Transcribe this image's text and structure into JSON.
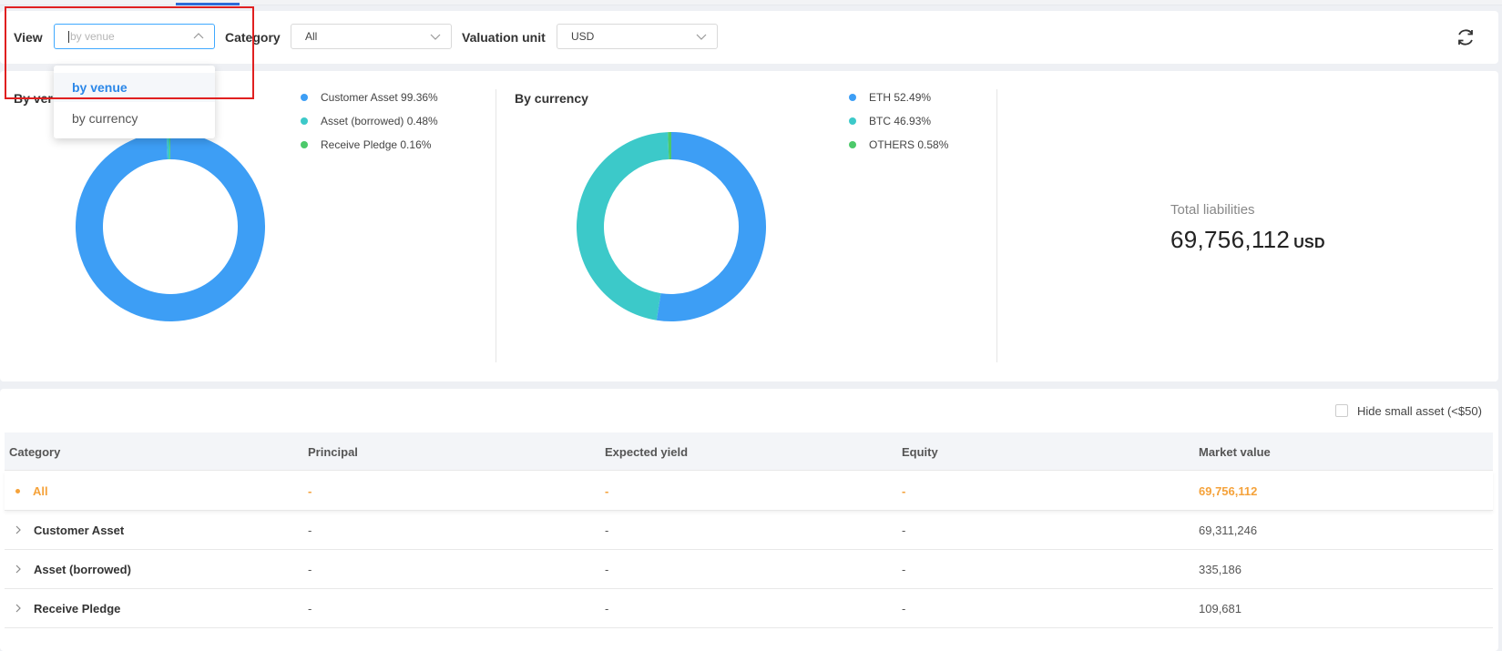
{
  "filters": {
    "view_label": "View",
    "view_placeholder": "by venue",
    "category_label": "Category",
    "category_value": "All",
    "valuation_label": "Valuation unit",
    "valuation_value": "USD"
  },
  "view_dropdown": {
    "options": [
      {
        "label": "by venue",
        "selected": true
      },
      {
        "label": "by currency",
        "selected": false
      }
    ]
  },
  "icons": {
    "refresh": "refresh-icon",
    "caret_up": "chevron-up-icon",
    "caret_down": "chevron-down-icon",
    "expand": "chevron-right-icon"
  },
  "colors": {
    "blue": "#3d9ef5",
    "teal": "#3cc9c9",
    "green": "#4cc96a",
    "orange": "#f5a23a",
    "highlight": "#e02020"
  },
  "venue_chart": {
    "title_visible": "By ver",
    "legend": [
      {
        "label": "Customer Asset 99.36%",
        "color": "#3d9ef5"
      },
      {
        "label": "Asset (borrowed) 0.48%",
        "color": "#3cc9c9"
      },
      {
        "label": "Receive Pledge 0.16%",
        "color": "#4cc96a"
      }
    ]
  },
  "currency_chart": {
    "title": "By currency",
    "legend": [
      {
        "label": "ETH 52.49%",
        "color": "#3d9ef5"
      },
      {
        "label": "BTC 46.93%",
        "color": "#3cc9c9"
      },
      {
        "label": "OTHERS 0.58%",
        "color": "#4cc96a"
      }
    ]
  },
  "chart_data": [
    {
      "type": "pie",
      "title": "",
      "categories": [
        "Customer Asset",
        "Asset (borrowed)",
        "Receive Pledge"
      ],
      "values": [
        99.36,
        0.48,
        0.16
      ],
      "colors": [
        "#3d9ef5",
        "#3cc9c9",
        "#4cc96a"
      ],
      "legend": "right"
    },
    {
      "type": "pie",
      "title": "By currency",
      "categories": [
        "ETH",
        "BTC",
        "OTHERS"
      ],
      "values": [
        52.49,
        46.93,
        0.58
      ],
      "colors": [
        "#3d9ef5",
        "#3cc9c9",
        "#4cc96a"
      ],
      "legend": "right"
    }
  ],
  "summary": {
    "total_label": "Total liabilities",
    "total_value": "69,756,112",
    "total_unit": "USD"
  },
  "table": {
    "hide_small_label": "Hide small asset (<$50)",
    "hide_small_checked": false,
    "columns": [
      "Category",
      "Principal",
      "Expected yield",
      "Equity",
      "Market value"
    ],
    "rows": [
      {
        "category": "All",
        "principal": "-",
        "expected_yield": "-",
        "equity": "-",
        "market_value": "69,756,112"
      },
      {
        "category": "Customer Asset",
        "principal": "-",
        "expected_yield": "-",
        "equity": "-",
        "market_value": "69,311,246"
      },
      {
        "category": "Asset (borrowed)",
        "principal": "-",
        "expected_yield": "-",
        "equity": "-",
        "market_value": "335,186"
      },
      {
        "category": "Receive Pledge",
        "principal": "-",
        "expected_yield": "-",
        "equity": "-",
        "market_value": "109,681"
      }
    ]
  }
}
